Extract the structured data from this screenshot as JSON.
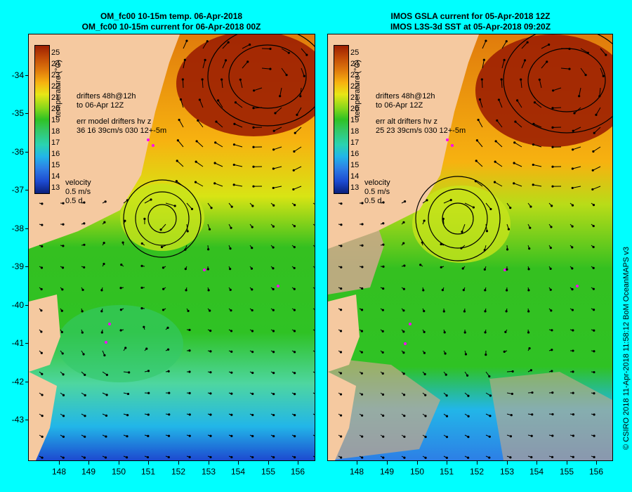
{
  "left": {
    "title_line1": "OM_fc00 10-15m temp. 06-Apr-2018",
    "title_line2": "OM_fc00 10-15m current for 06-Apr-2018 00Z",
    "legend": {
      "drifters_line1": "drifters 48h@12h",
      "drifters_line2": "to 06-Apr 12Z",
      "err_line1": "err model drifters hv z",
      "err_line2": "36 16 39cm/s 030 12+-5m"
    }
  },
  "right": {
    "title_line1": "IMOS GSLA current for 05-Apr-2018 12Z",
    "title_line2": "IMOS L3S-3d SST at 05-Apr-2018 09:20Z",
    "legend": {
      "drifters_line1": "drifters 48h@12h",
      "drifters_line2": "to 06-Apr 12Z",
      "err_line1": "err alt drifters hv z",
      "err_line2": "25 23 39cm/s 030 12+-5m"
    }
  },
  "colorbar": {
    "label": "temperature (°C)",
    "ticks": [
      "25",
      "24",
      "23",
      "22",
      "21",
      "20",
      "19",
      "18",
      "17",
      "16",
      "15",
      "14",
      "13"
    ]
  },
  "velocity": {
    "label": "velocity",
    "speed": "0.5 m/s",
    "duration": "0.5 d"
  },
  "y_ticks": [
    "-34",
    "-35",
    "-36",
    "-37",
    "-38",
    "-39",
    "-40",
    "-41",
    "-42",
    "-43"
  ],
  "x_ticks": [
    "148",
    "149",
    "150",
    "151",
    "152",
    "153",
    "154",
    "155",
    "156"
  ],
  "credit": "© CSIRO 2018  11-Apr-2018 11:58:12 BoM OceanMAPS v3",
  "colors": {
    "background": "#00ffff",
    "land": "#f5c9a0",
    "cloud": "#c8a888",
    "drifters": "#ff00ff"
  },
  "icons": [
    "velocity-arrow-icon",
    "drifter-track-icon"
  ]
}
